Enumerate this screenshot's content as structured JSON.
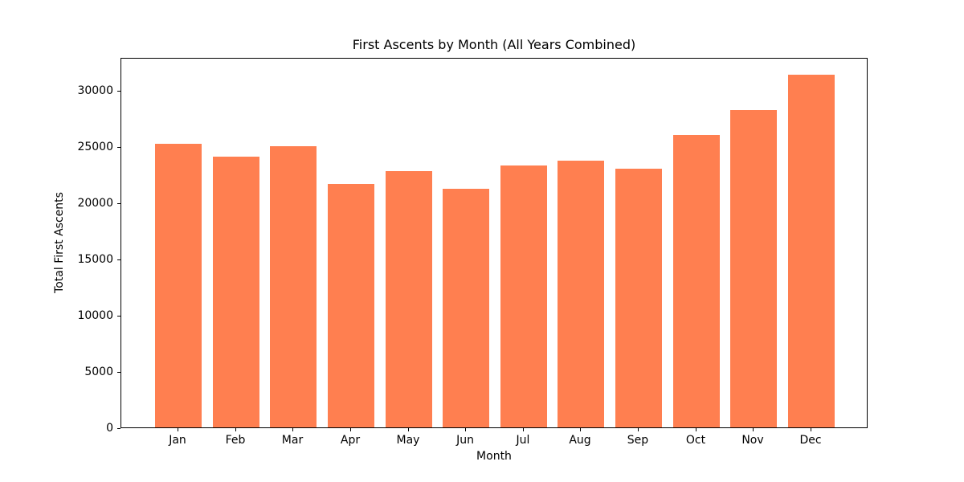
{
  "chart_data": {
    "type": "bar",
    "title": "First Ascents by Month (All Years Combined)",
    "xlabel": "Month",
    "ylabel": "Total First Ascents",
    "categories": [
      "Jan",
      "Feb",
      "Mar",
      "Apr",
      "May",
      "Jun",
      "Jul",
      "Aug",
      "Sep",
      "Oct",
      "Nov",
      "Dec"
    ],
    "values": [
      25200,
      24050,
      25000,
      21650,
      22750,
      21200,
      23300,
      23700,
      23000,
      26000,
      28200,
      31300
    ],
    "yticks": [
      0,
      5000,
      10000,
      15000,
      20000,
      25000,
      30000
    ],
    "ylim": [
      0,
      32900
    ],
    "bar_color": "#FF7F50",
    "axis_color": "#000000",
    "text_color": "#000000",
    "background_color": "#ffffff",
    "grid": false,
    "legend": null
  }
}
